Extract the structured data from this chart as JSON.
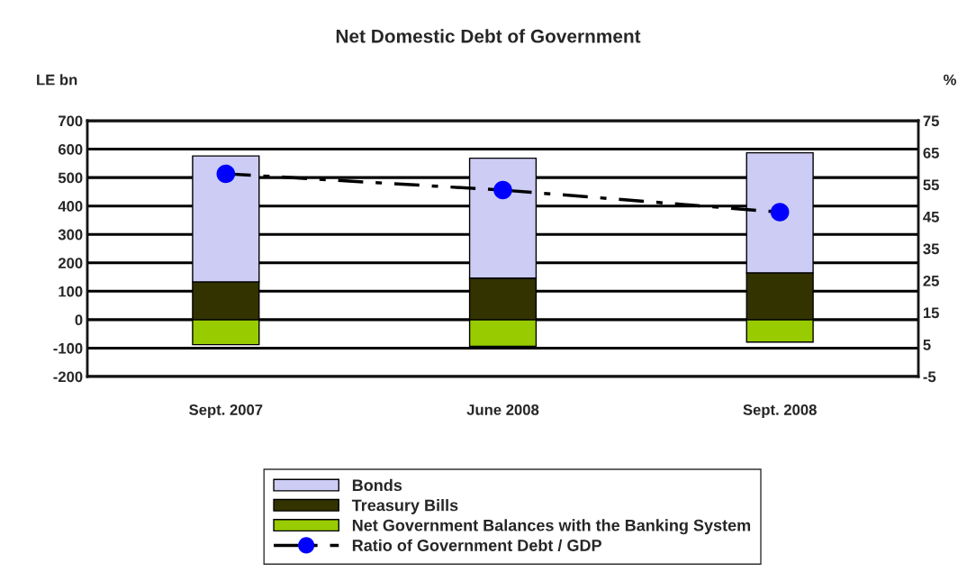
{
  "chart_data": {
    "type": "bar",
    "title": "Net Domestic Debt of Government",
    "ylabel": "LE bn",
    "y2label": "%",
    "categories": [
      "Sept. 2007",
      "June 2008",
      "Sept. 2008"
    ],
    "stacked": true,
    "series": [
      {
        "name": "Net Government Balances with the Banking System",
        "color": "#99cc00",
        "values": [
          -88,
          -94,
          -79
        ]
      },
      {
        "name": "Treasury Bills",
        "color": "#333300",
        "values": [
          133,
          146,
          165
        ]
      },
      {
        "name": "Bonds",
        "color": "#ccccf5",
        "values": [
          443,
          422,
          422
        ]
      },
      {
        "name": "Ratio of Government Debt / GDP",
        "type": "line",
        "axis": "y2",
        "color": "#000000",
        "colors": [
          "#0000ff",
          "#0000ff",
          "#0000ff"
        ],
        "marker": "circle",
        "line_style": "dashed",
        "values": [
          58.4,
          53.3,
          46.4
        ]
      }
    ],
    "ylim": [
      -200,
      700
    ],
    "yticks": [
      -200,
      -100,
      0,
      100,
      200,
      300,
      400,
      500,
      600,
      700
    ],
    "y2lim": [
      -5,
      75
    ],
    "y2ticks": [
      -5,
      5,
      15,
      25,
      35,
      45,
      55,
      65,
      75
    ],
    "grid": "y",
    "legend": "bottom"
  }
}
